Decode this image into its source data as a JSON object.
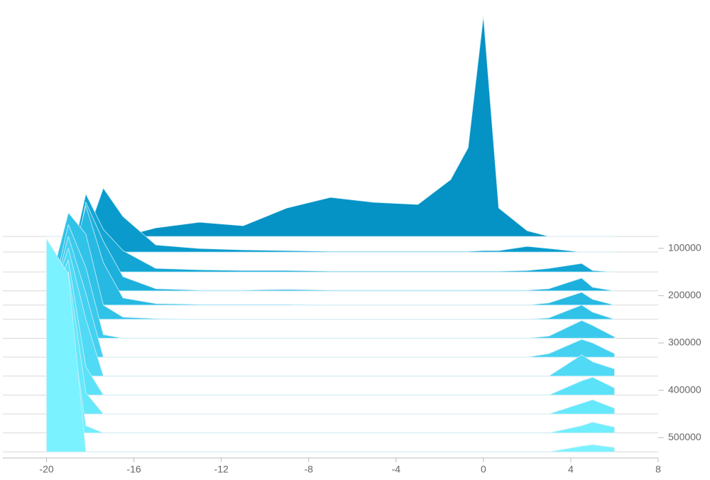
{
  "chart_data": {
    "type": "ridgeline",
    "x": [
      -20,
      -19,
      -18.2,
      -17.4,
      -16.5,
      -15,
      -13,
      -11,
      -9,
      -7,
      -5,
      -3,
      -1.5,
      -0.7,
      0,
      0.7,
      2,
      3,
      4.5,
      5,
      6
    ],
    "xlim": [
      -22,
      8
    ],
    "xticks": [
      -20,
      -16,
      -12,
      -8,
      -4,
      0,
      4,
      8
    ],
    "ylim": [
      0,
      540000
    ],
    "yticks": [
      100000,
      200000,
      300000,
      400000,
      500000
    ],
    "series": [
      {
        "step": 75000,
        "color": "#0592c4",
        "values": [
          0,
          0,
          0,
          0,
          0,
          12,
          20,
          15,
          40,
          55,
          48,
          45,
          80,
          125,
          310,
          40,
          8,
          0,
          0,
          0,
          0
        ]
      },
      {
        "step": 108000,
        "color": "#0a9bcc",
        "values": [
          0,
          0,
          20,
          90,
          50,
          10,
          5,
          3,
          2,
          1,
          1,
          1,
          1,
          1,
          2,
          2,
          8,
          5,
          0,
          0,
          0
        ]
      },
      {
        "step": 150000,
        "color": "#13a5d4",
        "values": [
          0,
          0,
          110,
          60,
          30,
          5,
          3,
          2,
          2,
          1,
          1,
          1,
          1,
          1,
          1,
          1,
          2,
          5,
          12,
          2,
          0
        ]
      },
      {
        "step": 190000,
        "color": "#1db0dc",
        "values": [
          0,
          0,
          125,
          70,
          20,
          3,
          1,
          1,
          2,
          1,
          1,
          1,
          1,
          1,
          1,
          1,
          1,
          3,
          18,
          5,
          0
        ]
      },
      {
        "step": 220000,
        "color": "#27b9e2",
        "values": [
          0,
          40,
          140,
          60,
          10,
          2,
          1,
          1,
          1,
          0,
          0,
          0,
          0,
          0,
          0,
          0,
          0,
          3,
          18,
          8,
          0
        ]
      },
      {
        "step": 250000,
        "color": "#31c2e8",
        "values": [
          30,
          150,
          120,
          20,
          3,
          1,
          0,
          0,
          0,
          0,
          0,
          0,
          0,
          0,
          0,
          0,
          0,
          2,
          20,
          10,
          0
        ]
      },
      {
        "step": 290000,
        "color": "#3bcaed",
        "values": [
          25,
          160,
          100,
          5,
          0,
          0,
          0,
          0,
          0,
          0,
          0,
          0,
          0,
          0,
          0,
          0,
          0,
          3,
          25,
          18,
          2
        ]
      },
      {
        "step": 330000,
        "color": "#45d2f1",
        "values": [
          50,
          170,
          90,
          0,
          0,
          0,
          0,
          0,
          0,
          0,
          0,
          0,
          0,
          0,
          0,
          0,
          0,
          5,
          25,
          20,
          5
        ]
      },
      {
        "step": 370000,
        "color": "#50daf5",
        "values": [
          90,
          180,
          80,
          0,
          0,
          0,
          0,
          0,
          0,
          0,
          0,
          0,
          0,
          0,
          0,
          0,
          0,
          0,
          30,
          20,
          10
        ]
      },
      {
        "step": 410000,
        "color": "#5be2f8",
        "values": [
          120,
          190,
          40,
          0,
          0,
          0,
          0,
          0,
          0,
          0,
          0,
          0,
          0,
          0,
          0,
          0,
          0,
          0,
          20,
          25,
          10
        ]
      },
      {
        "step": 450000,
        "color": "#66e8fb",
        "values": [
          170,
          200,
          30,
          0,
          0,
          0,
          0,
          0,
          0,
          0,
          0,
          0,
          0,
          0,
          0,
          0,
          0,
          0,
          15,
          20,
          8
        ]
      },
      {
        "step": 490000,
        "color": "#70eefd",
        "values": [
          220,
          180,
          10,
          0,
          0,
          0,
          0,
          0,
          0,
          0,
          0,
          0,
          0,
          0,
          0,
          0,
          0,
          0,
          10,
          15,
          8
        ]
      },
      {
        "step": 530000,
        "color": "#7af2ff",
        "values": [
          300,
          250,
          0,
          0,
          0,
          0,
          0,
          0,
          0,
          0,
          0,
          0,
          0,
          0,
          0,
          0,
          0,
          0,
          8,
          10,
          6
        ]
      }
    ]
  }
}
